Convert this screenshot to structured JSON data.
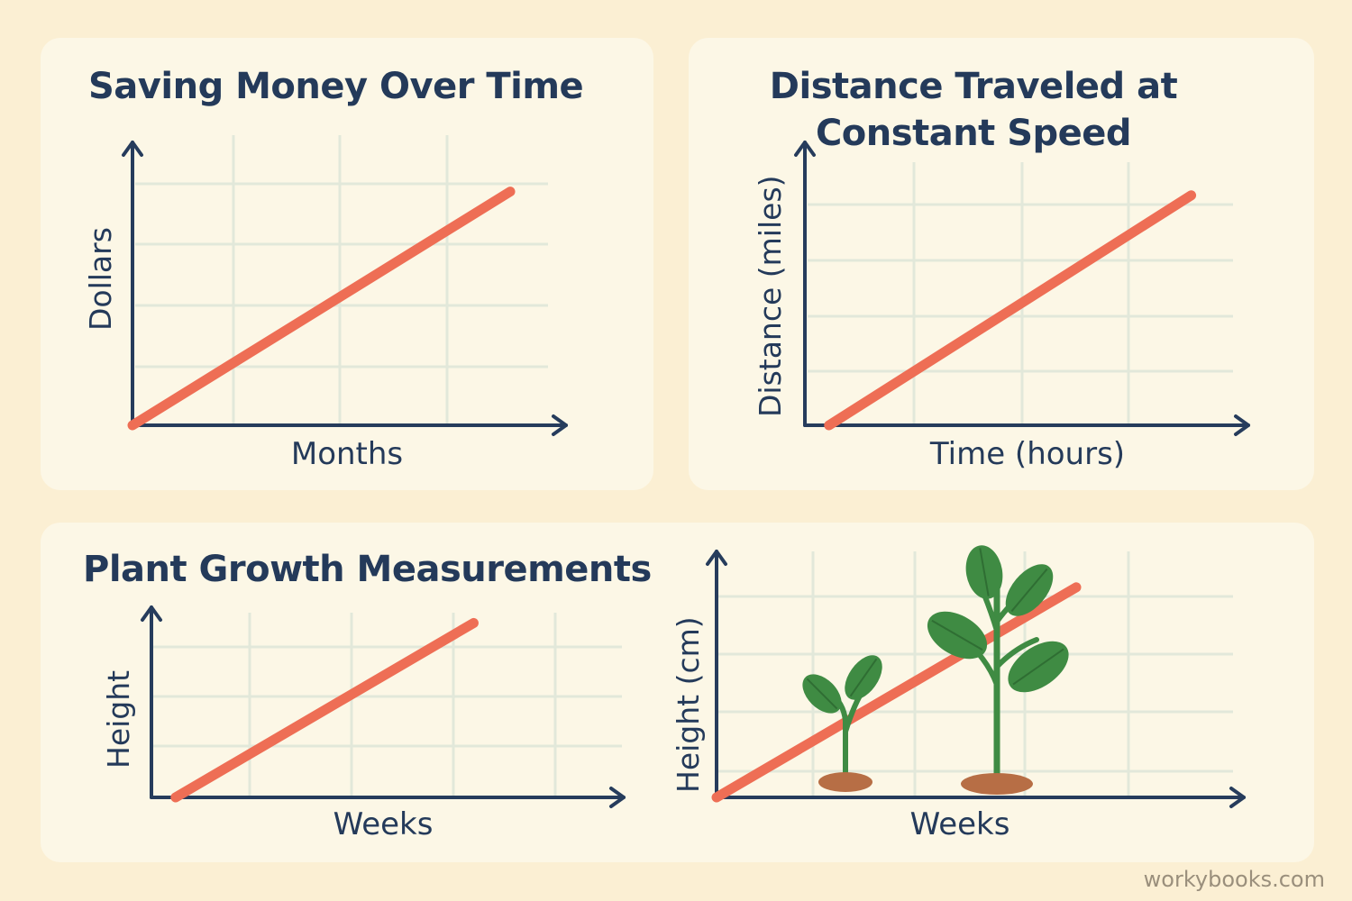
{
  "watermark": "workybooks.com",
  "colors": {
    "background": "#fbefd3",
    "panel": "#fcf7e6",
    "axis": "#263c5c",
    "grid": "#e2e8da",
    "line": "#ee6e55",
    "leaf": "#3f8b43",
    "stem": "#3f8b43",
    "soil": "#b76e45"
  },
  "chart_data": [
    {
      "type": "line",
      "title": "Saving Money Over Time",
      "xlabel": "Months",
      "ylabel": "Dollars",
      "grid": true,
      "series": [
        {
          "x": [
            0,
            4
          ],
          "y": [
            0,
            4.15
          ]
        }
      ],
      "xlim": [
        0,
        4.2
      ],
      "ylim": [
        0,
        4.8
      ]
    },
    {
      "type": "line",
      "title": "Distance Traveled at Constant Speed",
      "xlabel": "Time (hours)",
      "ylabel": "Distance (miles)",
      "grid": true,
      "series": [
        {
          "x": [
            0.25,
            4
          ],
          "y": [
            0,
            4.4
          ]
        }
      ],
      "xlim": [
        0,
        4.2
      ],
      "ylim": [
        0,
        5
      ]
    },
    {
      "type": "line",
      "title": "Plant Growth Measurements",
      "xlabel": "Weeks",
      "ylabel": "Height",
      "grid": true,
      "series": [
        {
          "x": [
            0.3,
            4
          ],
          "y": [
            0,
            3.45
          ]
        }
      ],
      "xlim": [
        0,
        4.7
      ],
      "ylim": [
        0,
        3.85
      ]
    },
    {
      "type": "line",
      "title": "",
      "xlabel": "Weeks",
      "ylabel": "Height (cm)",
      "grid": true,
      "series": [
        {
          "x": [
            0,
            4.2
          ],
          "y": [
            0,
            3.8
          ]
        }
      ],
      "xlim": [
        0,
        4.8
      ],
      "ylim": [
        0,
        4.4
      ],
      "illustrations": [
        "small-plant",
        "tall-plant"
      ]
    }
  ]
}
